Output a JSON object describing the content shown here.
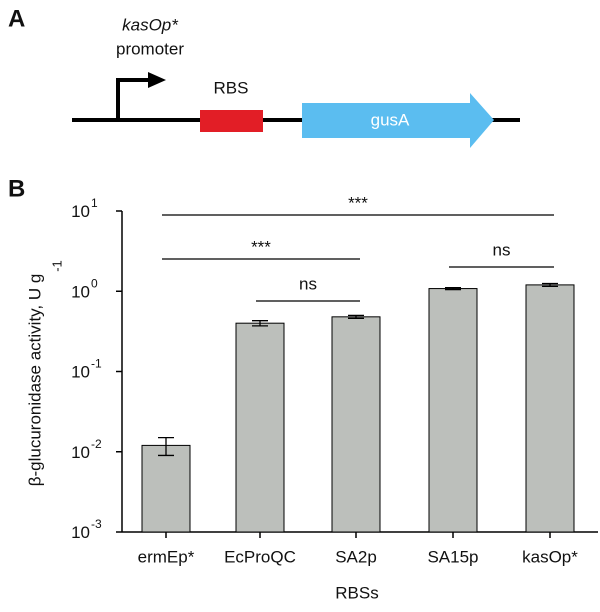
{
  "panel_a": {
    "label": "A",
    "promoter_name": "kasOp*",
    "promoter_word": "promoter",
    "rbs": "RBS",
    "gene": "gusA"
  },
  "chart_data": {
    "type": "bar",
    "panel_label": "B",
    "ylabel": "β-glucuronidase activity, U g",
    "ylabel_exponent": "-1",
    "xlabel": "RBSs",
    "categories": [
      "ermEp*",
      "EcProQC",
      "SA2p",
      "SA15p",
      "kasOp*"
    ],
    "values": [
      0.012,
      0.4,
      0.48,
      1.08,
      1.2
    ],
    "errors": [
      0.003,
      0.03,
      0.02,
      0.03,
      0.05
    ],
    "color": "#bcbfbb",
    "log_y": true,
    "ylim": [
      0.001,
      10
    ],
    "yticks": [
      {
        "value": 0.001,
        "label": "10",
        "exponent": "-3"
      },
      {
        "value": 0.01,
        "label": "10",
        "exponent": "-2"
      },
      {
        "value": 0.1,
        "label": "10",
        "exponent": "-1"
      },
      {
        "value": 1,
        "label": "10",
        "exponent": "0"
      },
      {
        "value": 10,
        "label": "10",
        "exponent": "1"
      }
    ],
    "annotations": [
      {
        "text": "***",
        "from": "ermEp*",
        "to": "kasOp*"
      },
      {
        "text": "***",
        "from": "ermEp*",
        "to": "SA2p"
      },
      {
        "text": "ns",
        "from": "EcProQC",
        "to": "SA2p"
      },
      {
        "text": "ns",
        "from": "SA15p",
        "to": "kasOp*"
      }
    ]
  }
}
